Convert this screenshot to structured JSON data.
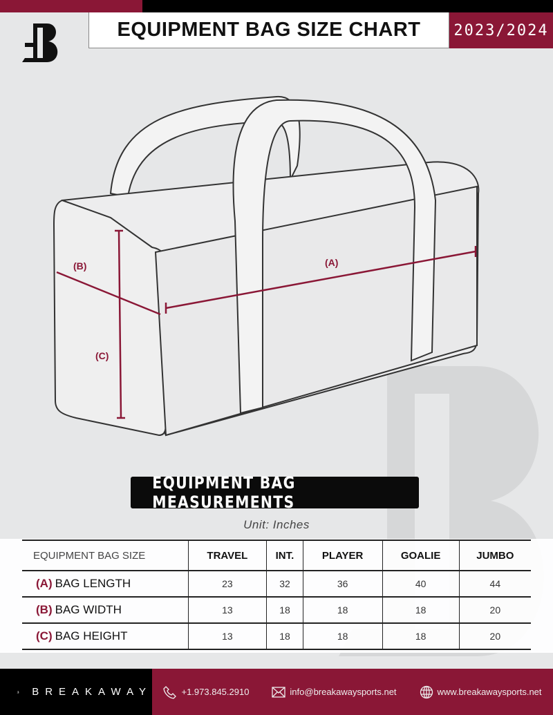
{
  "header": {
    "title": "EQUIPMENT BAG SIZE CHART",
    "season": "2023/2024"
  },
  "diagram": {
    "labels": {
      "a": "(A)",
      "b": "(B)",
      "c": "(C)"
    },
    "accent": "#8a1736"
  },
  "measurements": {
    "title": "EQUIPMENT BAG MEASUREMENTS",
    "unit": "Unit: Inches"
  },
  "table": {
    "header_label": "EQUIPMENT BAG SIZE",
    "columns": [
      "TRAVEL",
      "INT.",
      "PLAYER",
      "GOALIE",
      "JUMBO"
    ],
    "rows": [
      {
        "letter": "(A)",
        "label": "BAG LENGTH",
        "values": [
          "23",
          "32",
          "36",
          "40",
          "44"
        ]
      },
      {
        "letter": "(B)",
        "label": "BAG WIDTH",
        "values": [
          "13",
          "18",
          "18",
          "18",
          "20"
        ]
      },
      {
        "letter": "(C)",
        "label": "BAG HEIGHT",
        "values": [
          "13",
          "18",
          "18",
          "18",
          "20"
        ]
      }
    ]
  },
  "footer": {
    "brand": "BREAKAWAY",
    "phone": "+1.973.845.2910",
    "email": "info@breakawaysports.net",
    "website": "www.breakawaysports.net"
  },
  "colors": {
    "maroon": "#8a1736",
    "background": "#e6e7e8"
  }
}
